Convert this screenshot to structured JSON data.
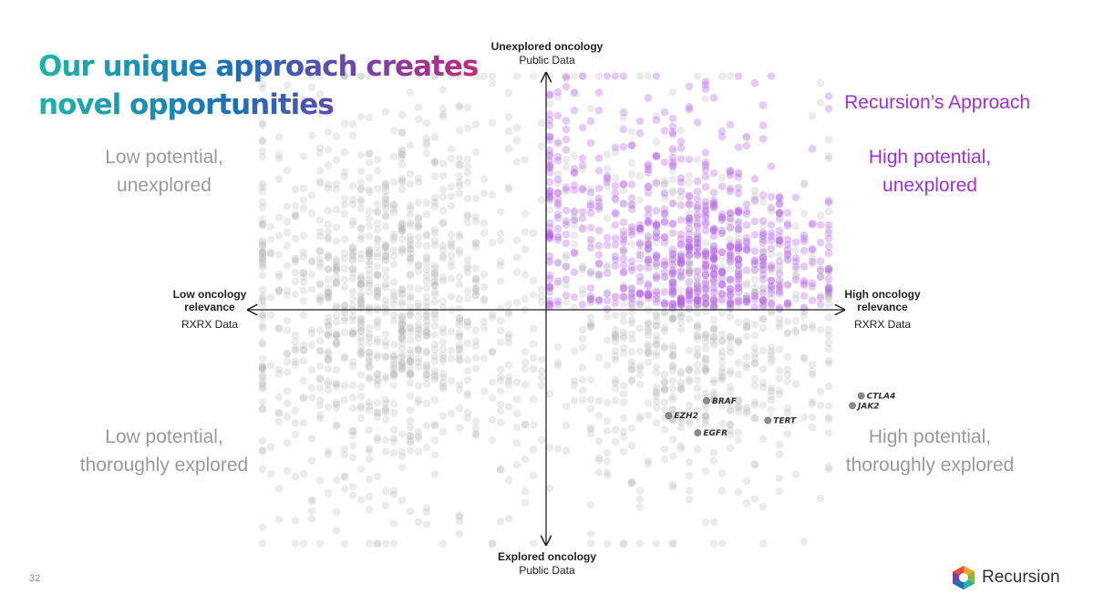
{
  "slide": {
    "title_line1": "Our unique approach creates",
    "title_line2": "novel opportunities",
    "page_number": "32",
    "brand": "Recursion"
  },
  "quadrants": {
    "top_left": [
      "Low potential,",
      "unexplored"
    ],
    "top_right_header": "Recursion’s Approach",
    "top_right": [
      "High potential,",
      "unexplored"
    ],
    "bottom_left": [
      "Low potential,",
      "thoroughly explored"
    ],
    "bottom_right": [
      "High potential,",
      "thoroughly explored"
    ]
  },
  "axes": {
    "top": {
      "title": "Unexplored oncology",
      "source": "Public Data"
    },
    "bottom": {
      "title": "Explored oncology",
      "source": "Public Data"
    },
    "left": {
      "title_line1": "Low oncology",
      "title_line2": "relevance",
      "source": "RXRX Data"
    },
    "right": {
      "title_line1": "High oncology",
      "title_line2": "relevance",
      "source": "RXRX Data"
    }
  },
  "colors": {
    "highlight": "#a12ed8",
    "neutral_points": "#a9a9a9",
    "highlight_points": "#b25de6",
    "gene_points": "#8c8c8c"
  },
  "chart_data": {
    "type": "scatter",
    "xlim": [
      -1,
      1
    ],
    "ylim": [
      -1,
      1
    ],
    "grid": false,
    "axes_through_origin": true,
    "clusters": [
      {
        "group": "neutral",
        "cx": -0.56,
        "cy": 0.04,
        "sx": 0.24,
        "sy": 0.38,
        "count": 900
      },
      {
        "group": "neutral",
        "cx": 0.53,
        "cy": -0.12,
        "sx": 0.23,
        "sy": 0.3,
        "count": 560
      },
      {
        "group": "neutral",
        "cx": -0.05,
        "cy": 0.05,
        "sx": 0.55,
        "sy": 0.55,
        "count": 420
      },
      {
        "group": "highlight",
        "cx": 0.55,
        "cy": 0.2,
        "sx": 0.2,
        "sy": 0.16,
        "count": 480
      },
      {
        "group": "highlight",
        "cx": 0.3,
        "cy": 0.45,
        "sx": 0.25,
        "sy": 0.3,
        "count": 220
      },
      {
        "group": "highlight",
        "cx": 0.02,
        "cy": 0.38,
        "sx": 0.01,
        "sy": 0.25,
        "count": 45
      }
    ],
    "labeled_points": [
      {
        "label": "BRAF",
        "x": 0.55,
        "y": -0.37
      },
      {
        "label": "EZH2",
        "x": 0.42,
        "y": -0.43
      },
      {
        "label": "TERT",
        "x": 0.76,
        "y": -0.45
      },
      {
        "label": "EGFR",
        "x": 0.52,
        "y": -0.5
      },
      {
        "label": "CTLA4",
        "x": 1.08,
        "y": -0.35
      },
      {
        "label": "JAK2",
        "x": 1.05,
        "y": -0.39
      }
    ]
  }
}
